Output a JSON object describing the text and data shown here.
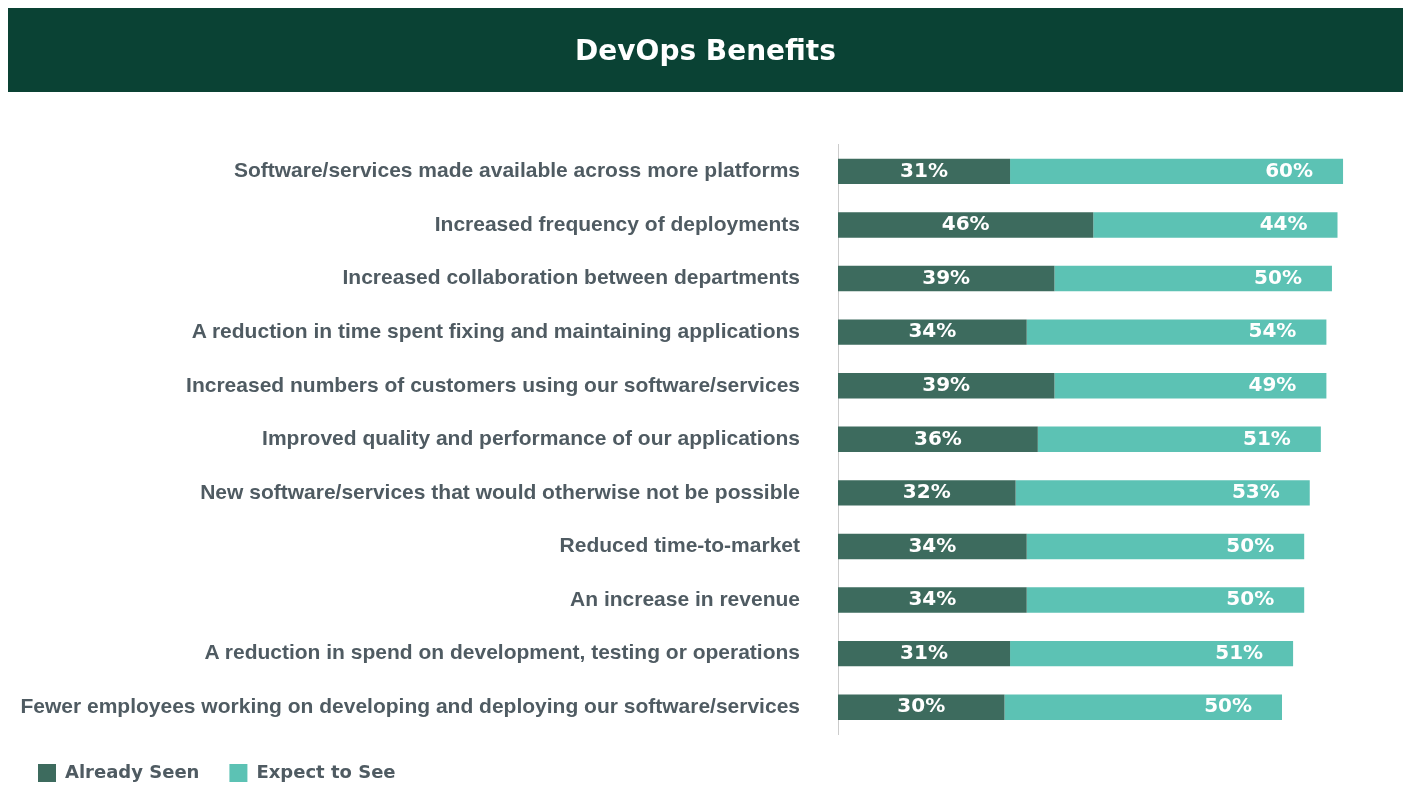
{
  "chart_data": {
    "type": "bar",
    "orientation": "horizontal",
    "stacked": true,
    "title": "DevOps Benefits",
    "categories": [
      "Software/services made available across more platforms",
      "Increased frequency of deployments",
      "Increased collaboration between departments",
      "A reduction in time spent fixing and maintaining applications",
      "Increased numbers of customers using our software/services",
      "Improved quality and performance of our applications",
      "New software/services that would otherwise not be possible",
      "Reduced time-to-market",
      "An increase in revenue",
      "A reduction in spend on development, testing or operations",
      "Fewer employees working on developing and deploying our software/services"
    ],
    "series": [
      {
        "name": "Already Seen",
        "color": "#3d6b5e",
        "values": [
          31,
          46,
          39,
          34,
          39,
          36,
          32,
          34,
          34,
          31,
          30
        ],
        "value_labels": [
          "31%",
          "46%",
          "39%",
          "34%",
          "39%",
          "36%",
          "32%",
          "34%",
          "34%",
          "31%",
          "30%"
        ]
      },
      {
        "name": "Expect to See",
        "color": "#5cc2b4",
        "values": [
          60,
          44,
          50,
          54,
          49,
          51,
          53,
          50,
          50,
          51,
          50
        ],
        "value_labels": [
          "60%",
          "44%",
          "50%",
          "54%",
          "49%",
          "51%",
          "53%",
          "50%",
          "50%",
          "51%",
          "50%"
        ]
      }
    ],
    "tick_labels": "y",
    "legend": "bottom",
    "grid": false
  }
}
